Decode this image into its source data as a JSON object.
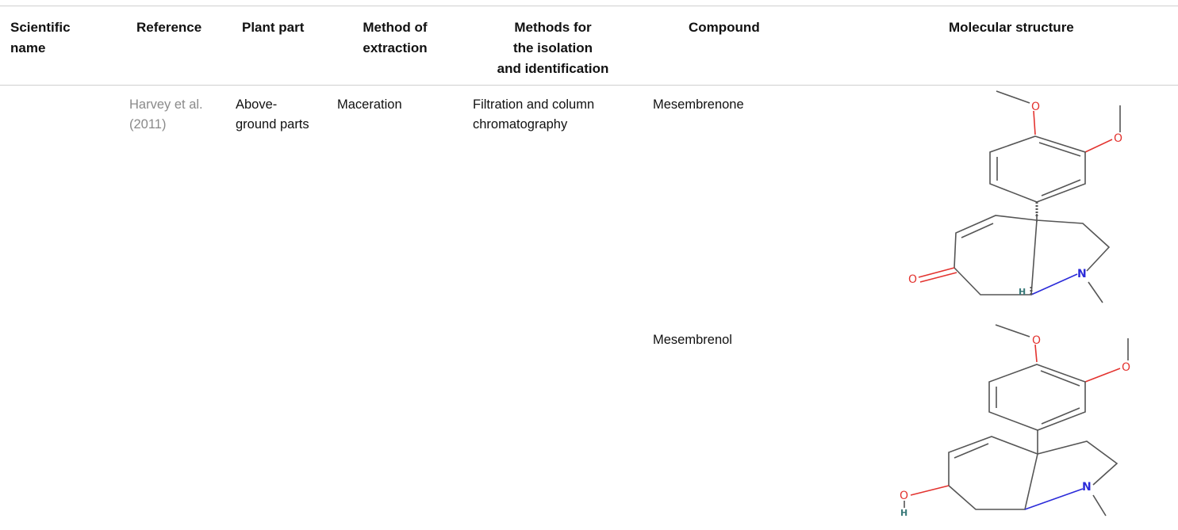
{
  "table": {
    "headers": {
      "scientific_name": "Scientific\nname",
      "reference": "Reference",
      "plant_part": "Plant part",
      "method_of_extraction": "Method of\nextraction",
      "methods_isolation": "Methods for\nthe isolation\nand identification",
      "compound": "Compound",
      "molecular_structure": "Molecular structure"
    },
    "rows": [
      {
        "scientific_name": "",
        "reference": "Harvey et al.\n(2011)",
        "plant_part": "Above-\nground parts",
        "method_of_extraction": "Maceration",
        "methods_isolation": "Filtration and column\nchromatography",
        "compound": "Mesembrenone",
        "structure": {
          "atoms": {
            "o1": "O",
            "o2": "O",
            "o3": "O",
            "n": "N",
            "h": "H"
          }
        }
      },
      {
        "scientific_name": "",
        "reference": "",
        "plant_part": "",
        "method_of_extraction": "",
        "methods_isolation": "",
        "compound": "Mesembrenol",
        "structure": {
          "atoms": {
            "o1": "O",
            "o2": "O",
            "o3": "O",
            "n": "N",
            "h": "H"
          }
        }
      }
    ]
  }
}
